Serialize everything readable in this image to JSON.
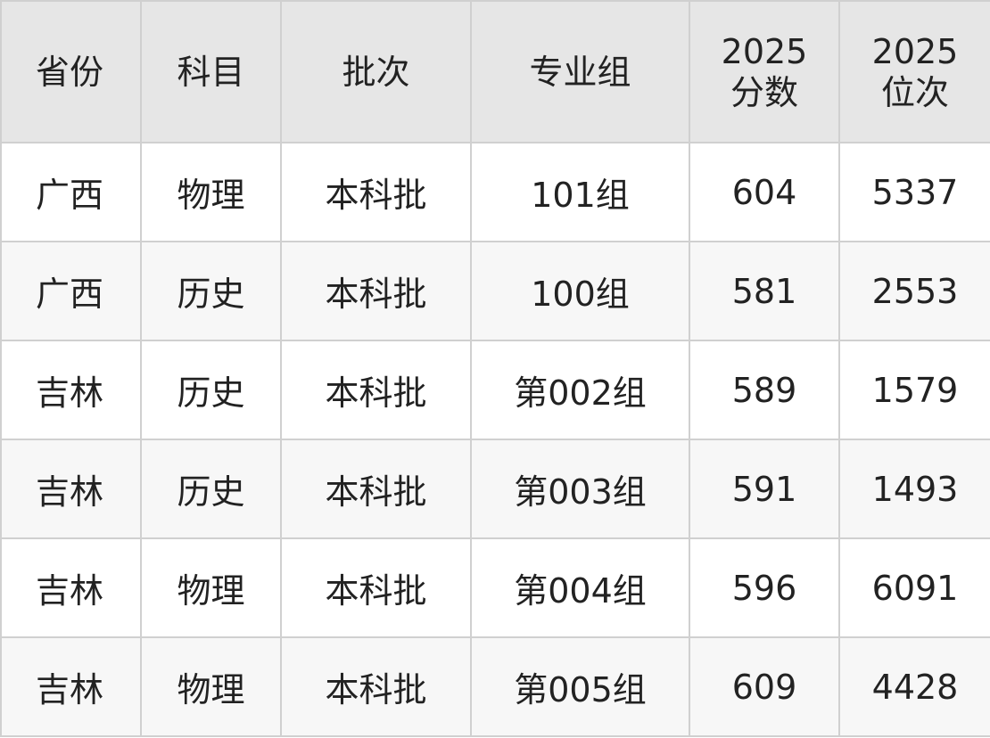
{
  "table": {
    "header": [
      "省份",
      "科目",
      "批次",
      "专业组",
      "2025\n分数",
      "2025\n位次"
    ],
    "rows": [
      [
        "广西",
        "物理",
        "本科批",
        "101组",
        604,
        5337
      ],
      [
        "广西",
        "历史",
        "本科批",
        "100组",
        581,
        2553
      ],
      [
        "吉林",
        "历史",
        "本科批",
        "第002组",
        589,
        1579
      ],
      [
        "吉林",
        "历史",
        "本科批",
        "第003组",
        591,
        1493
      ],
      [
        "吉林",
        "物理",
        "本科批",
        "第004组",
        596,
        6091
      ],
      [
        "吉林",
        "物理",
        "本科批",
        "第005组",
        609,
        4428
      ]
    ]
  }
}
